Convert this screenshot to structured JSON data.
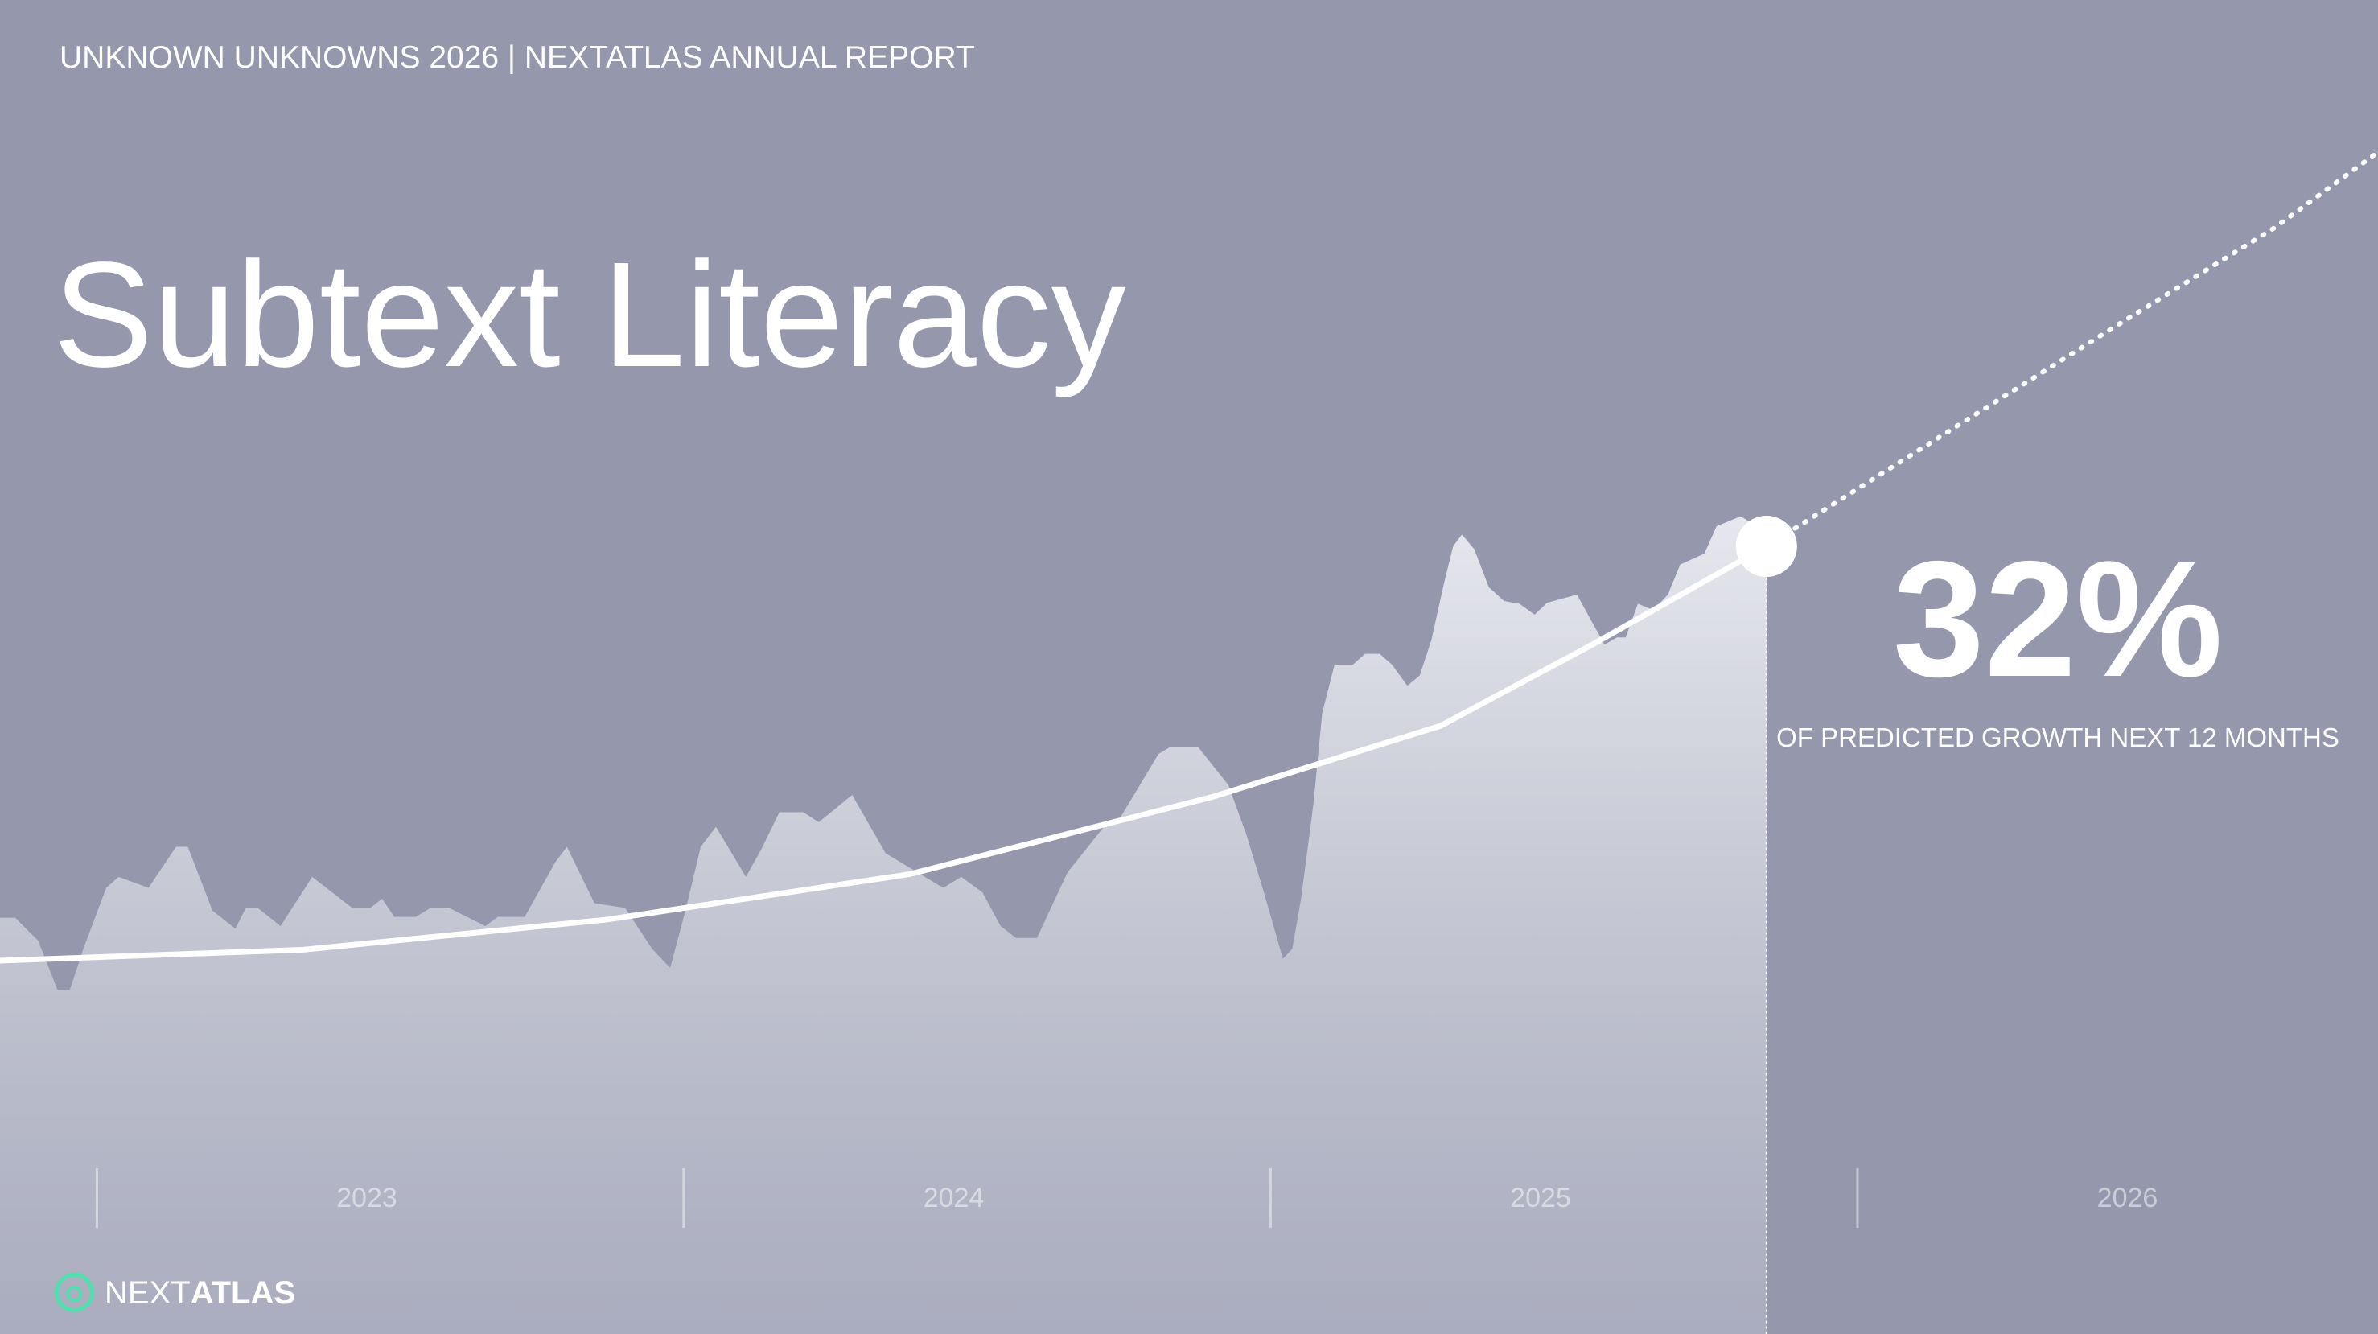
{
  "chart_data": {
    "type": "area",
    "header": "UNKNOWN UNKNOWNS 2026 | NEXTATLAS ANNUAL REPORT",
    "title": "Subtext Literacy",
    "brand": [
      "NEXT",
      "ATLAS"
    ],
    "highlight": {
      "value": 32,
      "value_label": "32%",
      "text": "OF PREDICTED GROWTH NEXT 12 MONTHS"
    },
    "xlim": [
      2022.835,
      2026.887
    ],
    "xticks": [
      2023,
      2024,
      2025,
      2026
    ],
    "ylim": [
      0,
      146.5
    ],
    "series": [
      {
        "kind": "area",
        "color": "#e8e9ef",
        "x": [
          2022.835,
          2022.861,
          2022.9,
          2022.933,
          2022.954,
          2022.977,
          2023.016,
          2023.037,
          2023.088,
          2023.135,
          2023.155,
          2023.197,
          2023.236,
          2023.254,
          2023.274,
          2023.313,
          2023.367,
          2023.435,
          2023.466,
          2023.486,
          2023.507,
          2023.543,
          2023.569,
          2023.6,
          2023.662,
          2023.683,
          2023.729,
          2023.781,
          2023.801,
          2023.848,
          2023.9,
          2023.946,
          2023.977,
          2024.003,
          2024.029,
          2024.055,
          2024.106,
          2024.132,
          2024.163,
          2024.204,
          2024.23,
          2024.287,
          2024.344,
          2024.411,
          2024.442,
          2024.473,
          2024.509,
          2024.54,
          2024.566,
          2024.602,
          2024.654,
          2024.716,
          2024.742,
          2024.809,
          2024.83,
          2024.876,
          2024.928,
          2024.959,
          2024.99,
          2025.021,
          2025.037,
          2025.052,
          2025.073,
          2025.088,
          2025.109,
          2025.14,
          2025.161,
          2025.186,
          2025.207,
          2025.233,
          2025.254,
          2025.274,
          2025.295,
          2025.311,
          2025.326,
          2025.347,
          2025.372,
          2025.398,
          2025.424,
          2025.45,
          2025.471,
          2025.522,
          2025.569,
          2025.59,
          2025.605,
          2025.626,
          2025.652,
          2025.677,
          2025.698,
          2025.739,
          2025.76,
          2025.801,
          2025.822,
          2025.845
        ],
        "values": [
          45.7,
          45.7,
          43.2,
          37.8,
          37.8,
          42.3,
          49.0,
          50.2,
          49.0,
          53.5,
          53.5,
          46.5,
          44.5,
          46.8,
          46.8,
          44.8,
          50.2,
          46.8,
          46.8,
          47.8,
          45.8,
          45.8,
          46.8,
          46.8,
          44.8,
          45.8,
          45.8,
          51.8,
          53.5,
          47.3,
          46.8,
          42.3,
          40.2,
          46.5,
          53.5,
          55.7,
          50.2,
          53.2,
          57.3,
          57.3,
          56.2,
          59.2,
          52.8,
          50.2,
          49.0,
          50.2,
          48.5,
          44.8,
          43.5,
          43.5,
          50.7,
          55.7,
          56.5,
          63.7,
          64.5,
          64.5,
          60.3,
          54.8,
          48.2,
          41.2,
          42.3,
          47.8,
          58.2,
          68.2,
          73.5,
          73.5,
          74.7,
          74.7,
          73.5,
          71.2,
          72.3,
          76.2,
          82.3,
          86.5,
          87.8,
          86.2,
          82.0,
          80.5,
          80.2,
          79.0,
          80.3,
          81.2,
          75.7,
          76.5,
          76.5,
          80.2,
          79.5,
          81.2,
          84.5,
          85.7,
          88.7,
          89.8,
          89.0,
          86.8
        ]
      },
      {
        "kind": "line",
        "color": "#ffffff",
        "x": [
          2022.835,
          2023.352,
          2023.868,
          2024.385,
          2024.902,
          2025.29,
          2025.548,
          2025.845
        ],
        "values": [
          41.0,
          42.2,
          45.5,
          50.5,
          59.0,
          66.8,
          75.7,
          86.5
        ]
      },
      {
        "kind": "line",
        "style": "dotted",
        "color": "#ffffff",
        "x": [
          2025.845,
          2026.194,
          2026.453,
          2026.711,
          2026.887
        ],
        "values": [
          86.5,
          100.7,
          111.2,
          121.5,
          129.8
        ]
      }
    ]
  }
}
